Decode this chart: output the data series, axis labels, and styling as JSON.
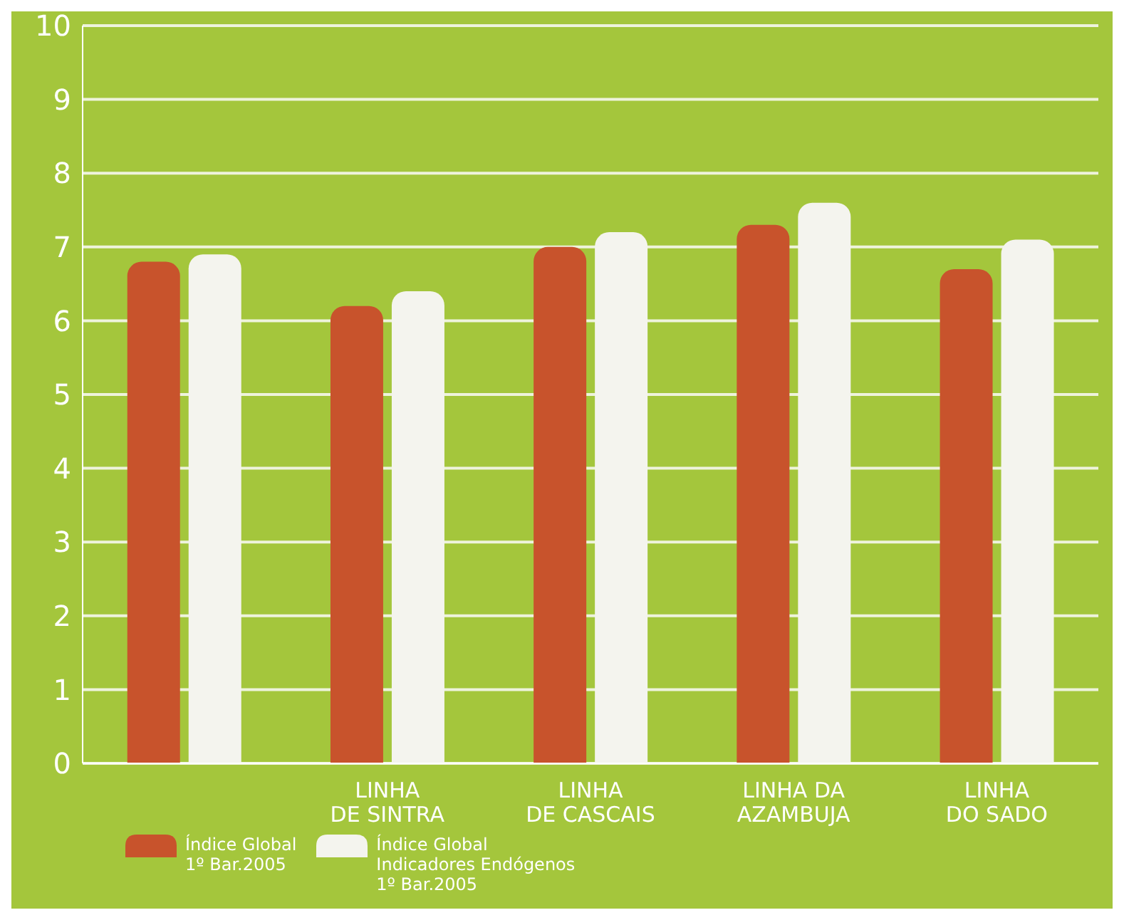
{
  "chart_data": {
    "type": "bar",
    "categories": [
      null,
      "LINHA\nDE SINTRA",
      "LINHA\nDE CASCAIS",
      "LINHA DA\nAZAMBUJA",
      "LINHA\nDO SADO"
    ],
    "series": [
      {
        "name": "Índice Global\n1º Bar.2005",
        "color": "#c8532c",
        "values": [
          6.8,
          6.2,
          7.0,
          7.3,
          6.7
        ]
      },
      {
        "name": "Índice Global\nIndicadores Endógenos\n1º Bar.2005",
        "color": "#f4f4ee",
        "values": [
          6.9,
          6.4,
          7.2,
          7.6,
          7.1
        ]
      }
    ],
    "ylim": [
      0,
      10
    ],
    "yticks": [
      0,
      1,
      2,
      3,
      4,
      5,
      6,
      7,
      8,
      9,
      10
    ],
    "grid": "y",
    "legend": "bottom left"
  }
}
